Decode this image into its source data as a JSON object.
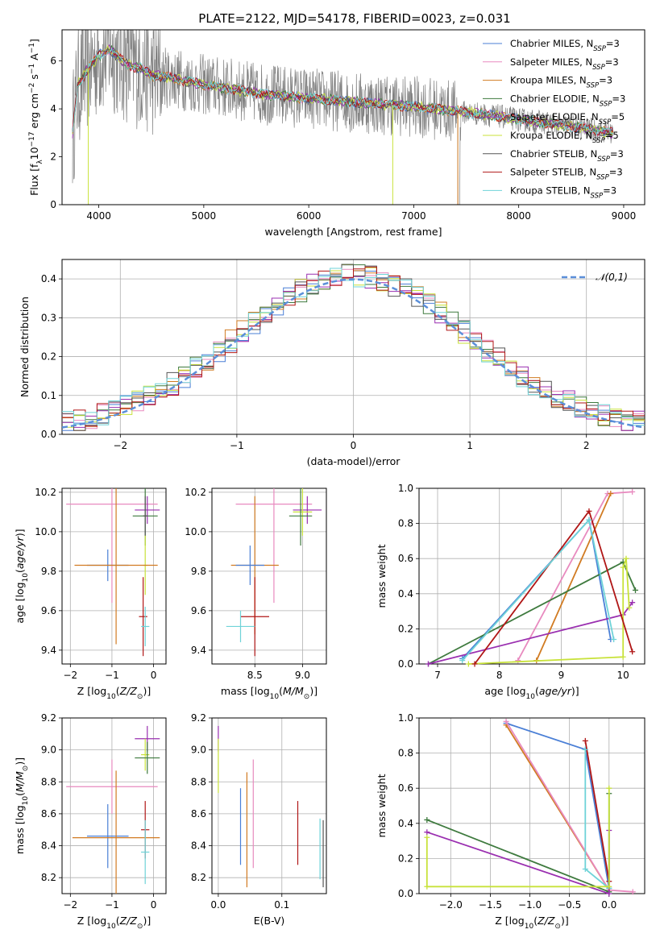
{
  "title": "PLATE=2122, MJD=54178, FIBERID=0023, z=0.031",
  "models": [
    {
      "name": "Chabrier MILES, N",
      "sub": "SSP",
      "suffix": "=3",
      "color": "#4a7fd6"
    },
    {
      "name": "Salpeter MILES, N",
      "sub": "SSP",
      "suffix": "=3",
      "color": "#e88abf"
    },
    {
      "name": "Kroupa MILES, N",
      "sub": "SSP",
      "suffix": "=3",
      "color": "#d17b22"
    },
    {
      "name": "Chabrier ELODIE, N",
      "sub": "SSP",
      "suffix": "=3",
      "color": "#3e7a3e"
    },
    {
      "name": "Salpeter ELODIE, N",
      "sub": "SSP",
      "suffix": "=5",
      "color": "#9a2fb0"
    },
    {
      "name": "Kroupa ELODIE, N",
      "sub": "SSP",
      "suffix": "=5",
      "color": "#c8e23a"
    },
    {
      "name": "Chabrier STELIB, N",
      "sub": "SSP",
      "suffix": "=3",
      "color": "#555555"
    },
    {
      "name": "Salpeter STELIB, N",
      "sub": "SSP",
      "suffix": "=3",
      "color": "#b01616"
    },
    {
      "name": "Kroupa STELIB, N",
      "sub": "SSP",
      "suffix": "=3",
      "color": "#6fd3d8"
    }
  ],
  "data_color": "#808080",
  "chart_data": [
    {
      "id": "spectrum",
      "type": "line",
      "xlabel": "wavelength [Angstrom, rest frame]",
      "ylabel": "Flux [f_λ 10^-17 erg cm^-2 s^-1 A^-1]",
      "xlim": [
        3650,
        9200
      ],
      "ylim": [
        0,
        7.3
      ],
      "xticks": [
        4000,
        5000,
        6000,
        7000,
        8000,
        9000
      ],
      "yticks": [
        0,
        2,
        4,
        6
      ],
      "continuum": {
        "x": [
          3750,
          3800,
          3900,
          4000,
          4100,
          4200,
          4300,
          4400,
          4500,
          4700,
          5000,
          5300,
          5600,
          6000,
          6500,
          7000,
          7200,
          7400,
          7600,
          7800,
          8000,
          8300,
          8600,
          8900
        ],
        "y": [
          3.0,
          5.0,
          5.7,
          6.2,
          6.5,
          6.1,
          5.8,
          5.7,
          5.4,
          5.3,
          5.0,
          4.8,
          4.6,
          4.45,
          4.25,
          4.1,
          4.0,
          3.9,
          3.8,
          3.7,
          3.55,
          3.4,
          3.2,
          3.0
        ]
      }
    },
    {
      "id": "residuals",
      "type": "bar",
      "xlabel": "(data-model)/error",
      "ylabel": "Normed distribution",
      "xlim": [
        -2.5,
        2.5
      ],
      "ylim": [
        0,
        0.45
      ],
      "xticks": [
        -2,
        -1,
        0,
        1,
        2
      ],
      "yticks": [
        0.0,
        0.1,
        0.2,
        0.3,
        0.4
      ],
      "reference_label": "N(0,1)",
      "bins": 50
    },
    {
      "id": "age_vs_Z",
      "type": "scatter",
      "xlabel": "Z [log10(Z/Z⊙)]",
      "ylabel": "age [log10(age/yr)]",
      "xlim": [
        -2.2,
        0.3
      ],
      "ylim": [
        9.33,
        10.22
      ],
      "xticks": [
        -2,
        -1,
        0
      ],
      "yticks": [
        9.4,
        9.6,
        9.8,
        10.0,
        10.2
      ],
      "points": [
        {
          "model": 1,
          "x": -1.0,
          "xerr": 1.1,
          "y": 10.14,
          "yerr": 0.5
        },
        {
          "model": 4,
          "x": -0.15,
          "xerr": 0.3,
          "y": 10.11,
          "yerr": 0.07
        },
        {
          "model": 3,
          "x": -0.2,
          "xerr": 0.3,
          "y": 10.08,
          "yerr": 0.15
        },
        {
          "model": 6,
          "x": -0.2,
          "xerr": 0.05,
          "y": 10.08,
          "yerr": 0.1
        },
        {
          "model": 5,
          "x": -0.2,
          "xerr": 0.05,
          "y": 9.83,
          "yerr": 0.15
        },
        {
          "model": 0,
          "x": -1.1,
          "xerr": 0.5,
          "y": 9.83,
          "yerr": 0.08
        },
        {
          "model": 2,
          "x": -0.9,
          "xerr": 1.0,
          "y": 9.83,
          "yerr": 0.4
        },
        {
          "model": 7,
          "x": -0.25,
          "xerr": 0.1,
          "y": 9.57,
          "yerr": 0.2
        },
        {
          "model": 8,
          "x": -0.2,
          "xerr": 0.1,
          "y": 9.52,
          "yerr": 0.1
        }
      ]
    },
    {
      "id": "age_vs_mass",
      "type": "scatter",
      "xlabel": "mass [log10(M/M⊙)]",
      "ylabel": "",
      "xlim": [
        8.05,
        9.25
      ],
      "ylim": [
        9.33,
        10.22
      ],
      "xticks": [
        8.5,
        9.0
      ],
      "yticks": [
        9.4,
        9.6,
        9.8,
        10.0,
        10.2
      ],
      "points": [
        {
          "model": 1,
          "x": 8.7,
          "xerr": 0.4,
          "y": 10.14,
          "yerr": 0.5
        },
        {
          "model": 4,
          "x": 9.05,
          "xerr": 0.15,
          "y": 10.11,
          "yerr": 0.07
        },
        {
          "model": 5,
          "x": 9.0,
          "xerr": 0.1,
          "y": 10.1,
          "yerr": 0.12
        },
        {
          "model": 3,
          "x": 8.98,
          "xerr": 0.12,
          "y": 10.08,
          "yerr": 0.15
        },
        {
          "model": 2,
          "x": 8.5,
          "xerr": 0.25,
          "y": 9.83,
          "yerr": 0.35
        },
        {
          "model": 0,
          "x": 8.45,
          "xerr": 0.15,
          "y": 9.83,
          "yerr": 0.1
        },
        {
          "model": 7,
          "x": 8.5,
          "xerr": 0.15,
          "y": 9.57,
          "yerr": 0.2
        },
        {
          "model": 8,
          "x": 8.35,
          "xerr": 0.15,
          "y": 9.52,
          "yerr": 0.08
        }
      ]
    },
    {
      "id": "weight_vs_age",
      "type": "line",
      "xlabel": "age [log10(age/yr)]",
      "ylabel": "mass weight",
      "xlim": [
        6.7,
        10.35
      ],
      "ylim": [
        0,
        1
      ],
      "xticks": [
        7,
        8,
        9,
        10
      ],
      "yticks": [
        0.0,
        0.2,
        0.4,
        0.6,
        0.8,
        1.0
      ],
      "series": [
        {
          "model": 0,
          "x": [
            7.4,
            9.45,
            9.8
          ],
          "y": [
            0.03,
            0.82,
            0.14
          ]
        },
        {
          "model": 1,
          "x": [
            8.3,
            9.75,
            10.15
          ],
          "y": [
            0.02,
            0.97,
            0.98
          ]
        },
        {
          "model": 2,
          "x": [
            8.6,
            9.8
          ],
          "y": [
            0.02,
            0.97
          ]
        },
        {
          "model": 3,
          "x": [
            6.85,
            10.0,
            10.2
          ],
          "y": [
            0.0,
            0.58,
            0.42
          ]
        },
        {
          "model": 4,
          "x": [
            6.85,
            10.0,
            10.15
          ],
          "y": [
            0.0,
            0.28,
            0.35
          ]
        },
        {
          "model": 5,
          "x": [
            7.5,
            10.0,
            10.0,
            10.05,
            10.1
          ],
          "y": [
            0.0,
            0.04,
            0.55,
            0.6,
            0.32
          ]
        },
        {
          "model": 7,
          "x": [
            7.6,
            9.45,
            10.15
          ],
          "y": [
            0.0,
            0.87,
            0.07
          ]
        },
        {
          "model": 8,
          "x": [
            7.4,
            9.45,
            9.85
          ],
          "y": [
            0.02,
            0.82,
            0.14
          ]
        }
      ]
    },
    {
      "id": "mass_vs_Z",
      "type": "scatter",
      "xlabel": "Z [log10(Z/Z⊙)]",
      "ylabel": "mass [log10(M/M⊙)]",
      "xlim": [
        -2.2,
        0.3
      ],
      "ylim": [
        8.1,
        9.2
      ],
      "xticks": [
        -2,
        -1,
        0
      ],
      "yticks": [
        8.2,
        8.4,
        8.6,
        8.8,
        9.0,
        9.2
      ],
      "points": [
        {
          "model": 4,
          "x": -0.15,
          "xerr": 0.3,
          "y": 9.07,
          "yerr": 0.08
        },
        {
          "model": 5,
          "x": -0.2,
          "xerr": 0.1,
          "y": 8.97,
          "yerr": 0.1
        },
        {
          "model": 3,
          "x": -0.15,
          "xerr": 0.3,
          "y": 8.95,
          "yerr": 0.1
        },
        {
          "model": 1,
          "x": -1.0,
          "xerr": 1.1,
          "y": 8.77,
          "yerr": 0.17
        },
        {
          "model": 7,
          "x": -0.2,
          "xerr": 0.1,
          "y": 8.5,
          "yerr": 0.18
        },
        {
          "model": 0,
          "x": -1.1,
          "xerr": 0.5,
          "y": 8.46,
          "yerr": 0.2
        },
        {
          "model": 2,
          "x": -0.9,
          "xerr": 1.05,
          "y": 8.45,
          "yerr": 0.42
        },
        {
          "model": 8,
          "x": -0.2,
          "xerr": 0.1,
          "y": 8.36,
          "yerr": 0.2
        }
      ]
    },
    {
      "id": "mass_vs_ebv",
      "type": "scatter",
      "xlabel": "E(B-V)",
      "ylabel": "",
      "xlim": [
        -0.01,
        0.17
      ],
      "ylim": [
        8.1,
        9.2
      ],
      "xticks": [
        0.0,
        0.1
      ],
      "yticks": [
        8.2,
        8.4,
        8.6,
        8.8,
        9.0,
        9.2
      ],
      "points": [
        {
          "model": 4,
          "x": 0.0,
          "xerr": 0.0,
          "y": 9.07,
          "yerr": 0.08
        },
        {
          "model": 5,
          "x": 0.0,
          "xerr": 0.0,
          "y": 8.9,
          "yerr": 0.17
        },
        {
          "model": 0,
          "x": 0.035,
          "xerr": 0.0,
          "y": 8.52,
          "yerr": 0.24
        },
        {
          "model": 2,
          "x": 0.045,
          "xerr": 0.0,
          "y": 8.5,
          "yerr": 0.36
        },
        {
          "model": 1,
          "x": 0.055,
          "xerr": 0.0,
          "y": 8.6,
          "yerr": 0.34
        },
        {
          "model": 7,
          "x": 0.125,
          "xerr": 0.0,
          "y": 8.48,
          "yerr": 0.2
        },
        {
          "model": 8,
          "x": 0.16,
          "xerr": 0.0,
          "y": 8.38,
          "yerr": 0.19
        },
        {
          "model": 6,
          "x": 0.165,
          "xerr": 0.0,
          "y": 8.35,
          "yerr": 0.21
        }
      ]
    },
    {
      "id": "weight_vs_Z",
      "type": "line",
      "xlabel": "Z [log10(Z/Z⊙)]",
      "ylabel": "mass weight",
      "xlim": [
        -2.4,
        0.45
      ],
      "ylim": [
        0,
        1
      ],
      "xticks": [
        -2.0,
        -1.5,
        -1.0,
        -0.5,
        0.0
      ],
      "yticks": [
        0.0,
        0.2,
        0.4,
        0.6,
        0.8,
        1.0
      ],
      "series": [
        {
          "model": 0,
          "x": [
            -1.3,
            -0.3,
            0.0
          ],
          "y": [
            0.97,
            0.82,
            0.03
          ]
        },
        {
          "model": 2,
          "x": [
            -1.3,
            0.0
          ],
          "y": [
            0.96,
            0.02
          ]
        },
        {
          "model": 1,
          "x": [
            -1.3,
            0.0,
            0.3
          ],
          "y": [
            0.98,
            0.02,
            0.01
          ]
        },
        {
          "model": 7,
          "x": [
            -0.3,
            0.0
          ],
          "y": [
            0.87,
            0.07
          ]
        },
        {
          "model": 8,
          "x": [
            -0.3,
            -0.3,
            0.0
          ],
          "y": [
            0.82,
            0.14,
            0.03
          ]
        },
        {
          "model": 3,
          "x": [
            -2.3,
            0.0,
            0.0
          ],
          "y": [
            0.42,
            0.01,
            0.57
          ]
        },
        {
          "model": 4,
          "x": [
            -2.3,
            0.0,
            0.0
          ],
          "y": [
            0.35,
            0.0,
            0.36
          ]
        },
        {
          "model": 5,
          "x": [
            -2.3,
            -2.3,
            0.0,
            0.0
          ],
          "y": [
            0.32,
            0.04,
            0.04,
            0.6
          ]
        }
      ]
    }
  ]
}
